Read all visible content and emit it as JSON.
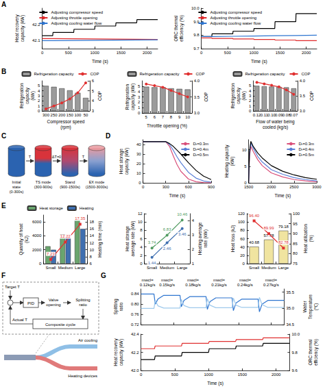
{
  "panel_labels": [
    "A",
    "B",
    "C",
    "D",
    "E",
    "F",
    "G"
  ],
  "chart_data": [
    {
      "type": "line",
      "xlabel": "Time (s)",
      "ylabel": "Heat recovery capacity (kW)",
      "x": [
        0,
        200,
        205,
        600,
        605,
        1000,
        1005,
        1400,
        1405,
        1800,
        1805,
        2200
      ],
      "xlim": [
        0,
        2200
      ],
      "xticks": [
        0,
        500,
        1000,
        1500,
        2000
      ],
      "ylim": [
        42.05,
        42.3
      ],
      "yticks": [
        42.1,
        42.2
      ],
      "legend": "upper left",
      "series": [
        {
          "name": "Adjusting compressor speed",
          "color": "#000000",
          "values": [
            42.13,
            42.13,
            42.15,
            42.15,
            42.17,
            42.17,
            42.19,
            42.19,
            42.21,
            42.21,
            42.23,
            42.23
          ]
        },
        {
          "name": "Adjusting throttle opening",
          "color": "#e0292a",
          "values": [
            42.112,
            42.112,
            42.111,
            42.111,
            42.11,
            42.11,
            42.109,
            42.109,
            42.108,
            42.108,
            42.107,
            42.107
          ]
        },
        {
          "name": "Adjusting cooling water flow",
          "color": "#2e75d0",
          "values": [
            42.1,
            42.1,
            42.101,
            42.101,
            42.102,
            42.102,
            42.103,
            42.103,
            42.104,
            42.104,
            42.105,
            42.105
          ]
        }
      ]
    },
    {
      "type": "line",
      "xlabel": "Time (s)",
      "ylabel": "ORC thermal efficiency (%)",
      "x": [
        0,
        200,
        205,
        600,
        605,
        1000,
        1005,
        1400,
        1405,
        1800,
        1805,
        2200
      ],
      "xlim": [
        0,
        2200
      ],
      "xticks": [
        0,
        500,
        1000,
        1500,
        2000
      ],
      "ylim": [
        9.7,
        10
      ],
      "yticks": [
        9.7,
        9.8,
        9.9,
        {
          "value": 10,
          "label": "10.0"
        }
      ],
      "legend": "upper left",
      "series": [
        {
          "name": "Adjusting compressor speed",
          "color": "#000000",
          "values": [
            9.79,
            9.79,
            9.81,
            9.81,
            9.83,
            9.83,
            9.85,
            9.85,
            9.9,
            9.9,
            9.96,
            9.96
          ]
        },
        {
          "name": "Adjusting throttle opening",
          "color": "#e0292a",
          "values": [
            9.78,
            9.78,
            9.776,
            9.776,
            9.772,
            9.772,
            9.768,
            9.768,
            9.764,
            9.764,
            9.76,
            9.76
          ]
        },
        {
          "name": "Adjusting cooling water flow",
          "color": "#2e75d0",
          "values": [
            9.79,
            9.79,
            9.792,
            9.792,
            9.794,
            9.794,
            9.796,
            9.796,
            9.798,
            9.798,
            9.8,
            9.8
          ]
        }
      ]
    },
    {
      "type": "bar",
      "xlabel": "Compressor speed (rpm)",
      "ylabel": "Refrigeration capacity (kW)",
      "y2label": "COP",
      "categories": [
        "300",
        "250",
        "200",
        "150",
        "100",
        "50"
      ],
      "ylim": [
        0,
        6
      ],
      "yticks": [
        0,
        1,
        2,
        3,
        4,
        5
      ],
      "y2lim": [
        3,
        6
      ],
      "y2ticks": [
        3,
        4,
        5,
        6
      ],
      "legend": "top",
      "series": [
        {
          "name": "Refrigeration capacity",
          "type": "bar",
          "color": "#9b9b9b",
          "values": [
            5,
            4.8,
            4.5,
            4.1,
            3.6,
            2.6
          ]
        },
        {
          "name": "COP",
          "type": "line",
          "axis": "y2",
          "color": "#e03030",
          "marker": "circle",
          "values": [
            3.2,
            3.5,
            3.8,
            4.2,
            4.8,
            5.8
          ]
        }
      ]
    },
    {
      "type": "bar",
      "xlabel": "Throttle opening (%)",
      "ylabel": "Refrigeration capacity (kW)",
      "y2label": "COP",
      "categories": [
        "5",
        "6",
        "7",
        "8",
        "9",
        "10"
      ],
      "ylim": [
        0,
        6
      ],
      "yticks": [
        0,
        1,
        2,
        3,
        4,
        5
      ],
      "y2lim": [
        3,
        4
      ],
      "y2ticks": [
        {
          "value": 3,
          "label": "3.0"
        },
        3.5,
        {
          "value": 4,
          "label": "4.0"
        }
      ],
      "legend": "top",
      "series": [
        {
          "name": "Refrigeration capacity",
          "type": "bar",
          "color": "#9b9b9b",
          "values": [
            4.9,
            4.8,
            4.8,
            4.6,
            4.5,
            4.4
          ]
        },
        {
          "name": "COP",
          "type": "line",
          "axis": "y2",
          "color": "#e03030",
          "marker": "circle",
          "values": [
            3.9,
            3.85,
            3.8,
            3.7,
            3.6,
            3.5
          ]
        }
      ]
    },
    {
      "type": "bar",
      "xlabel": "Flow of water being cooled (kg/s)",
      "ylabel": "Refrigeration capacity (kW)",
      "y2label": "COP",
      "categories": [
        "0.12",
        "0.11",
        "0.10",
        "0.09",
        "0.08",
        "0.07"
      ],
      "ylim": [
        0,
        6
      ],
      "yticks": [
        0,
        1,
        2,
        3,
        4,
        5
      ],
      "y2lim": [
        3,
        4
      ],
      "y2ticks": [
        {
          "value": 3,
          "label": "3.0"
        },
        3.5,
        {
          "value": 4,
          "label": "4.0"
        }
      ],
      "legend": "top",
      "series": [
        {
          "name": "Refrigeration capacity",
          "type": "bar",
          "color": "#9b9b9b",
          "values": [
            5,
            4.9,
            4.85,
            4.8,
            4.7,
            4.5
          ]
        },
        {
          "name": "COP",
          "type": "line",
          "axis": "y2",
          "color": "#e03030",
          "marker": "circle",
          "values": [
            3.95,
            3.9,
            3.85,
            3.8,
            3.7,
            3.55
          ]
        }
      ]
    },
    {
      "type": "line",
      "xlabel": "Time (s)",
      "ylabel": "Heat storage capacity (kW)",
      "x": [
        0,
        300,
        350,
        400,
        450,
        500,
        600,
        700,
        800,
        900
      ],
      "xlim": [
        0,
        900
      ],
      "xticks": [
        0,
        300,
        600,
        900
      ],
      "ylim": [
        0,
        45
      ],
      "yticks": [
        0,
        10,
        20,
        30,
        40
      ],
      "legend": "upper right",
      "series": [
        {
          "name": "Dᵣ=0.3m",
          "color": "#d94f7a",
          "values": [
            43,
            43,
            38,
            28,
            19,
            12,
            4,
            1.2,
            0.3,
            0.1
          ]
        },
        {
          "name": "Dᵣ=0.4m",
          "color": "#5a7fd6",
          "values": [
            43,
            43,
            40,
            34,
            27,
            21,
            11,
            5,
            2,
            0.8
          ]
        },
        {
          "name": "Dᵣ=0.5m",
          "color": "#000000",
          "values": [
            43,
            43,
            41,
            38,
            34,
            30,
            21,
            13,
            7,
            3.5
          ]
        }
      ]
    },
    {
      "type": "line",
      "xlabel": "Time (s)",
      "ylabel": "Heating capacity (kW)",
      "x": [
        1500,
        1520,
        1550,
        1600,
        1700,
        1800,
        2000,
        2250,
        2500,
        2750,
        3000
      ],
      "xlim": [
        1500,
        3000
      ],
      "xticks": [
        1500,
        2000,
        2500,
        3000
      ],
      "ylim": [
        0,
        13
      ],
      "yticks": [
        0,
        5,
        10
      ],
      "legend": "upper right",
      "series": [
        {
          "name": "Dᵣ=0.3m",
          "color": "#d94f7a",
          "values": [
            0,
            8,
            11,
            9.5,
            7,
            5.2,
            3,
            1.8,
            1,
            0.6,
            0.3
          ]
        },
        {
          "name": "Dᵣ=0.4m",
          "color": "#5a7fd6",
          "values": [
            0,
            9,
            12,
            10.5,
            8,
            6.3,
            4,
            2.6,
            1.6,
            1,
            0.6
          ]
        },
        {
          "name": "Dᵣ=0.5m",
          "color": "#000000",
          "values": [
            0,
            9.5,
            12.5,
            11,
            9,
            7.5,
            5.2,
            3.5,
            2.4,
            1.6,
            1.1
          ]
        }
      ]
    },
    {
      "type": "bar",
      "categories": [
        "Small",
        "Medium",
        "Large"
      ],
      "ylabel": "Quantity of heat (kJ)",
      "y2label": "Heating time (min)",
      "ylim": [
        0,
        7000
      ],
      "yticks": [
        0,
        2000,
        4000,
        6000
      ],
      "y2lim": [
        6,
        20
      ],
      "y2ticks": [
        6,
        8,
        10,
        12,
        14,
        16,
        18
      ],
      "legend": "top",
      "series": [
        {
          "name": "Heat storage",
          "type": "bar",
          "color": "#6aa56e",
          "values": [
            2500,
            4200,
            6300
          ]
        },
        {
          "name": "Heating",
          "type": "bar",
          "color": "#3f6fb0",
          "values": [
            2000,
            3900,
            5000
          ]
        },
        {
          "type": "line",
          "axis": "y2",
          "color": "#e03030",
          "marker": "square",
          "data_labels": true,
          "values": [
            7.23,
            12.22,
            17.35
          ]
        }
      ]
    },
    {
      "type": "line",
      "categories": [
        "Small",
        "Medium",
        "Large"
      ],
      "ylabel": "Heat storage average rate (kW)",
      "y2label": "Heating average rate (kW)",
      "ylim": [
        0,
        12
      ],
      "yticks": [
        0,
        2,
        4,
        6,
        8,
        10,
        12
      ],
      "y2lim": [
        1,
        4.5
      ],
      "y2ticks": [
        1,
        2,
        3,
        4
      ],
      "series": [
        {
          "color": "#4f9a60",
          "marker": "circle",
          "data_labels": true,
          "values": [
            3.74,
            6.83,
            10.46
          ]
        },
        {
          "axis": "y2",
          "color": "#3f6fb0",
          "marker": "circle",
          "data_labels": true,
          "values": [
            1.44,
            2.46,
            3.46
          ]
        }
      ]
    },
    {
      "type": "bar",
      "categories": [
        "Small",
        "Medium",
        "Large"
      ],
      "ylabel": "Heat loss (kJ)",
      "y2label": "Heat utilization (%)",
      "ylim": [
        0,
        120
      ],
      "yticks": [
        0,
        20,
        40,
        60,
        80,
        100,
        120
      ],
      "y2lim": [
        75,
        100
      ],
      "y2ticks": [
        75,
        80,
        85,
        90,
        95,
        100
      ],
      "series": [
        {
          "type": "bar",
          "color": "#f0e4a0",
          "data_labels": true,
          "values": [
            40.68,
            57.78,
            79.18
          ]
        },
        {
          "type": "line",
          "axis": "y2",
          "color": "#e03030",
          "marker": "square",
          "data_labels": true,
          "values": [
            96.4,
            89.99,
            82.78
          ],
          "value_labels": [
            "96.40",
            "89.99",
            "82.78"
          ]
        }
      ]
    },
    {
      "type": "line",
      "tick_labels": "y",
      "ylabel": "Splitting ratio",
      "y2label": "Water Temperature (℃)",
      "x": [
        0,
        200,
        220,
        260,
        350,
        600,
        620,
        660,
        750,
        1000,
        1020,
        1060,
        1150,
        1400,
        1420,
        1460,
        1550,
        1800,
        1820,
        1860,
        1950,
        2200
      ],
      "xlim": [
        0,
        2200
      ],
      "xticks": [
        0,
        500,
        1000,
        1500,
        2000
      ],
      "ylim": [
        0.72,
        0.86
      ],
      "yticks": [
        0.72,
        0.76,
        {
          "value": 0.8,
          "label": "0.80"
        },
        0.84
      ],
      "y2lim": [
        34.5,
        35.6
      ],
      "y2ticks": [
        34.5,
        {
          "value": 35,
          "label": "35.0"
        },
        35.5
      ],
      "annotations": [
        {
          "text": "mwcl=0.12kg/s",
          "x": 100
        },
        {
          "text": "mwcl=0.15kg/s",
          "x": 400
        },
        {
          "text": "mwcl=0.18kg/s",
          "x": 800
        },
        {
          "text": "mwcl=0.21kg/s",
          "x": 1200
        },
        {
          "text": "mwcl=0.24kg/s",
          "x": 1600
        },
        {
          "text": "mwcl=0.27kg/s",
          "x": 2000
        }
      ],
      "series": [
        {
          "color": "#2e75d0",
          "values": [
            0.84,
            0.84,
            0.8,
            0.82,
            0.835,
            0.835,
            0.79,
            0.815,
            0.83,
            0.83,
            0.78,
            0.81,
            0.825,
            0.825,
            0.775,
            0.805,
            0.82,
            0.82,
            0.77,
            0.8,
            0.815,
            0.815
          ]
        },
        {
          "axis": "y2",
          "color": "#9ec9ec",
          "values": [
            35,
            35,
            35.25,
            35.08,
            35.01,
            35.01,
            35.28,
            35.09,
            35.02,
            35.02,
            35.3,
            35.1,
            35.02,
            35.02,
            35.32,
            35.1,
            35.03,
            35.03,
            35.34,
            35.12,
            35.03,
            35.03
          ]
        }
      ]
    },
    {
      "type": "line",
      "xlabel": "Time (s)",
      "ylabel": "Heat recovery capacity (kW)",
      "y2label": "ORC thermal efficiency (%)",
      "x": [
        0,
        200,
        210,
        600,
        610,
        1000,
        1010,
        1400,
        1410,
        1800,
        1810,
        2200
      ],
      "xlim": [
        0,
        2200
      ],
      "xticks": [
        0,
        500,
        1000,
        1500,
        2000
      ],
      "ylim": [
        42,
        42.4
      ],
      "yticks": [
        {
          "value": 42,
          "label": "42.0"
        },
        42.2,
        42.4
      ],
      "y2lim": [
        9.6,
        10
      ],
      "y2ticks": [
        9.6,
        9.8,
        {
          "value": 10,
          "label": "10.0"
        }
      ],
      "series": [
        {
          "color": "#000000",
          "values": [
            42.12,
            42.12,
            42.16,
            42.16,
            42.2,
            42.2,
            42.24,
            42.24,
            42.27,
            42.27,
            42.3,
            42.3
          ]
        },
        {
          "axis": "y2",
          "color": "#e03030",
          "values": [
            9.84,
            9.84,
            9.87,
            9.87,
            9.9,
            9.9,
            9.92,
            9.92,
            9.94,
            9.94,
            9.96,
            9.96
          ]
        }
      ]
    }
  ],
  "diagrams": {
    "C": {
      "stages": [
        "Initial state (0-300s)",
        "TS mode (300-900s)",
        "Stand (900-1500s)",
        "EX mode (1500-3000s)"
      ],
      "arrows": [
        "T",
        "ΔT=0",
        "T"
      ]
    },
    "F": {
      "target": "Target T",
      "pid": "PID",
      "valve": "Valve opening",
      "split": "Splitting ratio",
      "actual": "Actual T",
      "cycle": "Composite cycle",
      "outputs": [
        "Air cooling",
        "Heating devices"
      ]
    }
  }
}
